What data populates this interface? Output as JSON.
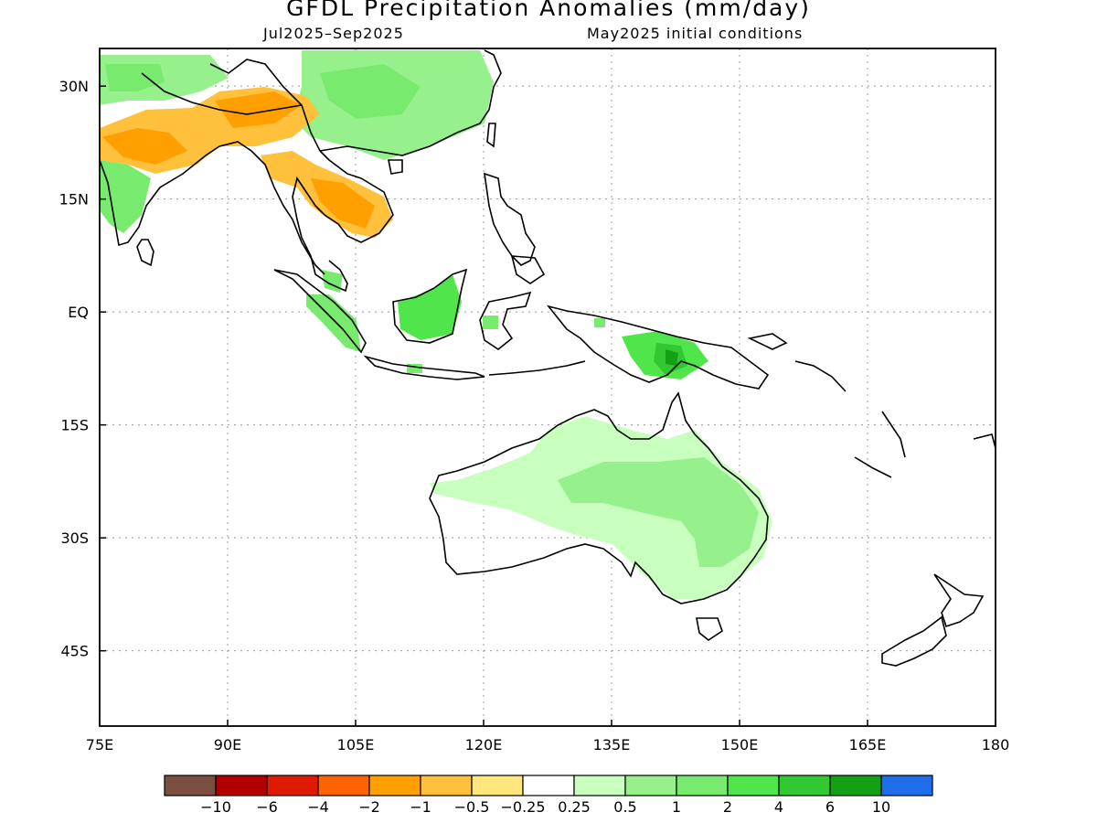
{
  "title": "GFDL Precipitation Anomalies (mm/day)",
  "subtitle_left": "Jul2025–Sep2025",
  "subtitle_right": "May2025 initial conditions",
  "map": {
    "lon_range": [
      75,
      180
    ],
    "lat_range": [
      -55,
      35
    ],
    "lon_ticks": [
      {
        "value": 75,
        "label": "75E"
      },
      {
        "value": 90,
        "label": "90E"
      },
      {
        "value": 105,
        "label": "105E"
      },
      {
        "value": 120,
        "label": "120E"
      },
      {
        "value": 135,
        "label": "135E"
      },
      {
        "value": 150,
        "label": "150E"
      },
      {
        "value": 165,
        "label": "165E"
      },
      {
        "value": 180,
        "label": "180"
      }
    ],
    "lat_ticks": [
      {
        "value": 30,
        "label": "30N"
      },
      {
        "value": 15,
        "label": "15N"
      },
      {
        "value": 0,
        "label": "EQ"
      },
      {
        "value": -15,
        "label": "15S"
      },
      {
        "value": -30,
        "label": "30S"
      },
      {
        "value": -45,
        "label": "45S"
      }
    ],
    "grid": true
  },
  "colorbar": {
    "colors": [
      "#7b4f3f",
      "#b20000",
      "#e01a00",
      "#ff6400",
      "#ffa000",
      "#ffc03c",
      "#ffe67d",
      "#ffffff",
      "#c8ffbe",
      "#96f08c",
      "#78eb6e",
      "#50e64b",
      "#32c832",
      "#14a014",
      "#1e6eeb"
    ],
    "labels": [
      "−10",
      "−6",
      "−4",
      "−2",
      "−1",
      "−0.5",
      "−0.25",
      "0.25",
      "0.5",
      "1",
      "2",
      "4",
      "6",
      "10"
    ]
  }
}
